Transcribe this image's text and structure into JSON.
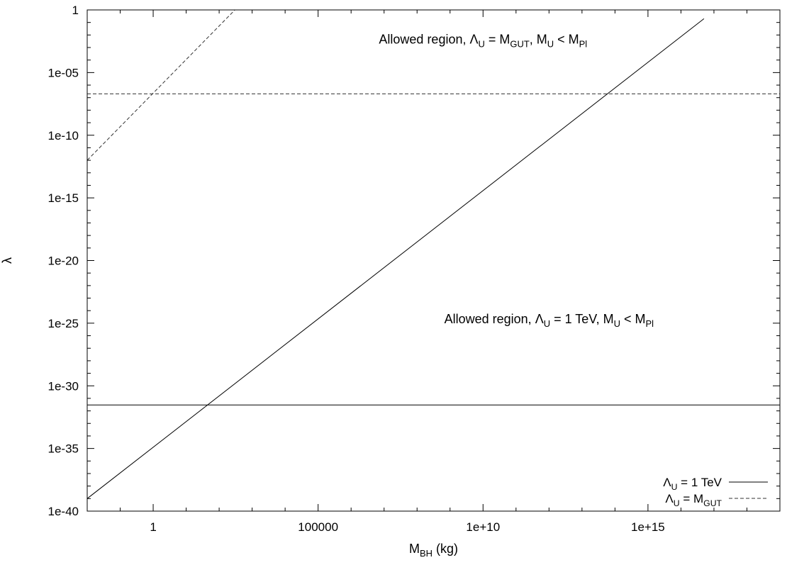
{
  "chart_data": {
    "type": "line",
    "xscale": "log",
    "yscale": "log",
    "xlim": [
      0.01,
      1e+19
    ],
    "ylim": [
      1e-40,
      1
    ],
    "xticks": [
      {
        "value": 1,
        "label": "1"
      },
      {
        "value": 100000,
        "label": "100000"
      },
      {
        "value": 10000000000.0,
        "label": "1e+10"
      },
      {
        "value": 1000000000000000.0,
        "label": "1e+15"
      }
    ],
    "yticks": [
      {
        "value": 1e-40,
        "label": "1e-40"
      },
      {
        "value": 1e-35,
        "label": "1e-35"
      },
      {
        "value": 1e-30,
        "label": "1e-30"
      },
      {
        "value": 1e-25,
        "label": "1e-25"
      },
      {
        "value": 1e-20,
        "label": "1e-20"
      },
      {
        "value": 1e-15,
        "label": "1e-15"
      },
      {
        "value": 1e-10,
        "label": "1e-10"
      },
      {
        "value": 1e-05,
        "label": "1e-05"
      },
      {
        "value": 1,
        "label": "1"
      }
    ],
    "xlabel": {
      "main": "M",
      "sub": "BH",
      "tail": " (kg)"
    },
    "ylabel": "λ",
    "grid": false,
    "legend_position": "bottom-right",
    "series": [
      {
        "name_parts": [
          {
            "t": "Λ"
          },
          {
            "t": "U",
            "sub": true
          },
          {
            "t": " = 1 TeV"
          }
        ],
        "style": "solid",
        "segments": [
          {
            "x": [
              0.01,
              5e+16
            ],
            "y": [
              1e-39,
              0.2
            ]
          },
          {
            "x": [
              0.01,
              1e+19
            ],
            "y": [
              3e-32,
              3e-32
            ]
          }
        ]
      },
      {
        "name_parts": [
          {
            "t": "Λ"
          },
          {
            "t": "U",
            "sub": true
          },
          {
            "t": " = M"
          },
          {
            "t": "GUT",
            "sub": true
          }
        ],
        "style": "dashed",
        "segments": [
          {
            "x": [
              0.01,
              300
            ],
            "y": [
              1e-12,
              1
            ]
          },
          {
            "x": [
              0.01,
              1e+19
            ],
            "y": [
              2e-07,
              2e-07
            ]
          }
        ]
      }
    ],
    "annotations": [
      {
        "x": 10000000000.0,
        "y": 0.002,
        "parts": [
          {
            "t": "Allowed region, "
          },
          {
            "t": "Λ"
          },
          {
            "t": "U",
            "sub": true
          },
          {
            "t": " = M"
          },
          {
            "t": "GUT",
            "sub": true
          },
          {
            "t": ", M"
          },
          {
            "t": "U",
            "sub": true
          },
          {
            "t": " < M"
          },
          {
            "t": "Pl",
            "sub": true
          }
        ]
      },
      {
        "x": 1000000000000.0,
        "y": 1e-25,
        "parts": [
          {
            "t": "Allowed region, "
          },
          {
            "t": "Λ"
          },
          {
            "t": "U",
            "sub": true
          },
          {
            "t": " = 1 TeV, M"
          },
          {
            "t": "U",
            "sub": true
          },
          {
            "t": " < M"
          },
          {
            "t": "Pl",
            "sub": true
          }
        ]
      }
    ]
  }
}
